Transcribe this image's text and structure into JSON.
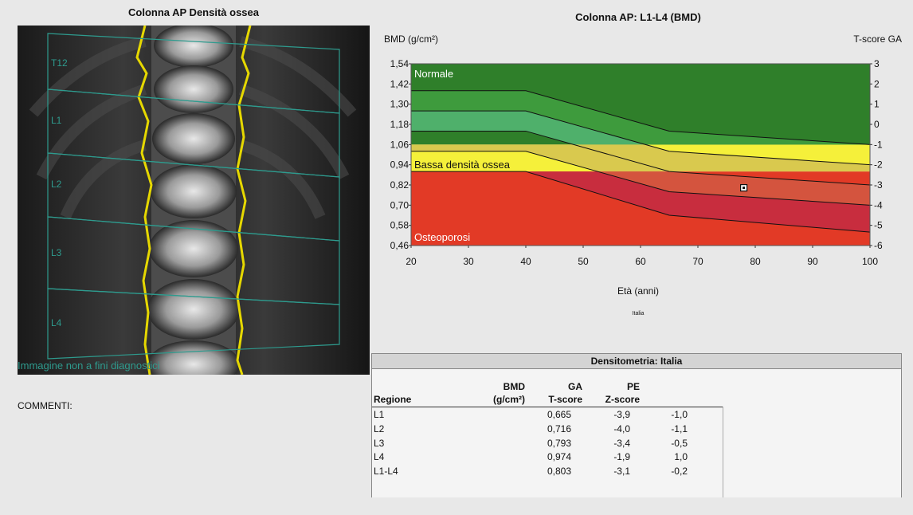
{
  "left_panel": {
    "title": "Colonna AP Densità ossea",
    "roi_labels": [
      "T12",
      "L1",
      "L2",
      "L3",
      "L4"
    ],
    "footer": "Immagine non a fini diagnostici"
  },
  "comments_label": "COMMENTI:",
  "chart": {
    "title": "Colonna AP: L1-L4 (BMD)",
    "ylabel": "BMD (g/cm²)",
    "ylabel_right": "T-score GA",
    "xlabel": "Età (anni)",
    "note": "Italia",
    "zone_labels": {
      "normal": "Normale",
      "low": "Bassa densità ossea",
      "osteo": "Osteoporosi"
    },
    "colors": {
      "normal": "#2f7f2a",
      "normal_band": "#3e9b3d",
      "light_green": "#4fb06b",
      "low": "#f5f03a",
      "low_band": "#d9c94e",
      "osteo": "#e23a26",
      "osteo_band": "#d4543e",
      "osteo_dark": "#c82d3e"
    }
  },
  "chart_data": {
    "type": "area",
    "title": "Colonna AP: L1-L4 (BMD)",
    "xlabel": "Età (anni)",
    "ylabel": "BMD (g/cm²)",
    "ylabel_right": "T-score GA",
    "x_ticks": [
      20,
      30,
      40,
      50,
      60,
      70,
      80,
      90,
      100
    ],
    "y_ticks": [
      "1,54",
      "1,42",
      "1,30",
      "1,18",
      "1,06",
      "0,94",
      "0,82",
      "0,70",
      "0,58",
      "0,46"
    ],
    "y_values": [
      1.54,
      1.42,
      1.3,
      1.18,
      1.06,
      0.94,
      0.82,
      0.7,
      0.58,
      0.46
    ],
    "tscore_ticks": [
      3,
      2,
      1,
      0,
      -1,
      -2,
      -3,
      -4,
      -5,
      -6
    ],
    "xlim": [
      20,
      100
    ],
    "ylim": [
      0.46,
      1.54
    ],
    "patient_point": {
      "x": 78,
      "y": 0.803
    },
    "reference_curves": [
      {
        "x": [
          20,
          40,
          65,
          100
        ],
        "y": [
          1.38,
          1.38,
          1.14,
          1.06
        ]
      },
      {
        "x": [
          20,
          40,
          65,
          100
        ],
        "y": [
          1.26,
          1.26,
          1.02,
          0.94
        ]
      },
      {
        "x": [
          20,
          40,
          65,
          100
        ],
        "y": [
          1.14,
          1.14,
          0.9,
          0.82
        ]
      },
      {
        "x": [
          20,
          40,
          65,
          100
        ],
        "y": [
          1.02,
          1.02,
          0.78,
          0.7
        ]
      },
      {
        "x": [
          20,
          40,
          65,
          100
        ],
        "y": [
          0.9,
          0.9,
          0.64,
          0.54
        ]
      }
    ],
    "thresholds": {
      "normal_min": 1.06,
      "osteo_max": 0.9
    }
  },
  "table": {
    "title": "Densitometria: Italia",
    "headers": {
      "region": "Regione",
      "bmd_top": "BMD",
      "bmd_bottom": "(g/cm²)",
      "ga_top": "GA",
      "ga_bottom": "T-score",
      "pe_top": "PE",
      "pe_bottom": "Z-score"
    },
    "rows": [
      {
        "region": "L1",
        "bmd": "0,665",
        "t": "-3,9",
        "z": "-1,0"
      },
      {
        "region": "L2",
        "bmd": "0,716",
        "t": "-4,0",
        "z": "-1,1"
      },
      {
        "region": "L3",
        "bmd": "0,793",
        "t": "-3,4",
        "z": "-0,5"
      },
      {
        "region": "L4",
        "bmd": "0,974",
        "t": "-1,9",
        "z": "1,0"
      },
      {
        "region": "L1-L4",
        "bmd": "0,803",
        "t": "-3,1",
        "z": "-0,2"
      }
    ]
  }
}
